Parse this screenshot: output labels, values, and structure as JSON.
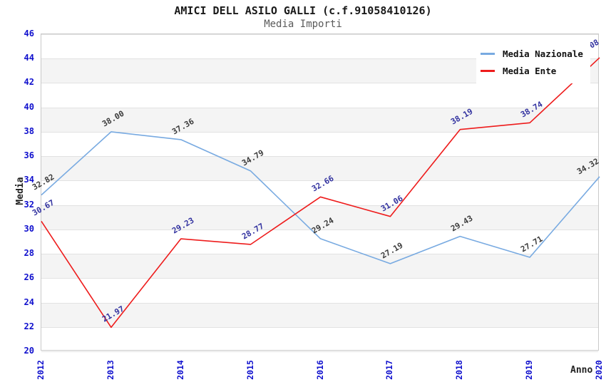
{
  "chart_data": {
    "type": "line",
    "title": "AMICI DELL ASILO GALLI (c.f.91058410126)",
    "subtitle": "Media Importi",
    "xlabel": "Anno",
    "ylabel": "Media",
    "categories": [
      "2012",
      "2013",
      "2014",
      "2015",
      "2016",
      "2017",
      "2018",
      "2019",
      "2020"
    ],
    "series": [
      {
        "name": "Media Nazionale",
        "color": "#78aae1",
        "label_color": "#3c3c3c",
        "values": [
          32.82,
          38.0,
          37.36,
          34.79,
          29.24,
          27.19,
          29.43,
          27.71,
          34.32
        ],
        "labels": [
          "32.82",
          "38.00",
          "37.36",
          "34.79",
          "29.24",
          "27.19",
          "29.43",
          "27.71",
          "34.32"
        ]
      },
      {
        "name": "Media Ente",
        "color": "#ee1c1c",
        "label_color": "#3333a0",
        "values": [
          30.67,
          21.97,
          29.23,
          28.77,
          32.66,
          31.06,
          38.19,
          38.74,
          44.08
        ],
        "labels": [
          "30.67",
          "21.97",
          "29.23",
          "28.77",
          "32.66",
          "31.06",
          "38.19",
          "38.74",
          "44.08"
        ]
      }
    ],
    "ylim": [
      20,
      46
    ],
    "yticks": [
      46,
      44,
      42,
      40,
      38,
      36,
      34,
      32,
      30,
      28,
      26,
      24,
      22,
      20
    ],
    "grid": true,
    "legend_position": "top-right",
    "colors": {
      "axis_tick_color": "#0f0fcd",
      "band_fill": "#f4f4f4",
      "grid_line": "#e2e2e2",
      "plot_border": "#c9c9c9"
    }
  }
}
